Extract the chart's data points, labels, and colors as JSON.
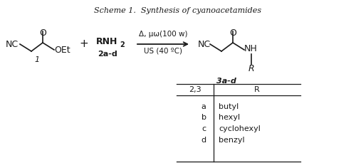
{
  "bg_color": "#ffffff",
  "title": "Scheme 1.  Synthesis of cyanoacetamides",
  "font_size": 9,
  "small_font": 8,
  "table_col1_header": "2,3",
  "table_col2_header": "R",
  "table_rows": [
    [
      "a",
      "butyl"
    ],
    [
      "b",
      "hexyl"
    ],
    [
      "c",
      "cyclohexyl"
    ],
    [
      "d",
      "benzyl"
    ]
  ],
  "arrow_label_top": "Δ, μω(100 w)",
  "arrow_label_bot": "US (40 ºC)",
  "reactant1_label": "1",
  "reactant2_label": "2a-d",
  "product_label": "3a-d",
  "text_color": "#1a1a1a"
}
